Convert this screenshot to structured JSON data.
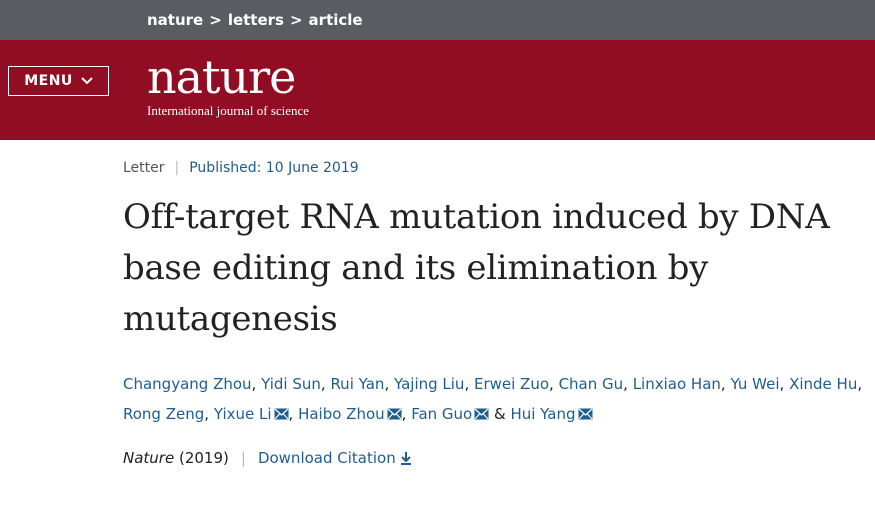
{
  "breadcrumb": {
    "items": [
      "nature",
      "letters",
      "article"
    ],
    "separator": ">"
  },
  "masthead": {
    "menu_label": "MENU",
    "logo_word": "nature",
    "logo_tagline": "International journal of science"
  },
  "article": {
    "type": "Letter",
    "published": "Published: 10 June 2019",
    "title": "Off-target RNA mutation induced by DNA base editing and its elimination by mutagenesis",
    "authors": [
      {
        "name": "Changyang Zhou",
        "sep": ", ",
        "mail": false
      },
      {
        "name": "Yidi Sun",
        "sep": ", ",
        "mail": false
      },
      {
        "name": "Rui Yan",
        "sep": ", ",
        "mail": false
      },
      {
        "name": "Yajing Liu",
        "sep": ", ",
        "mail": false
      },
      {
        "name": "Erwei Zuo",
        "sep": ", ",
        "mail": false
      },
      {
        "name": "Chan Gu",
        "sep": ", ",
        "mail": false
      },
      {
        "name": "Linxiao Han",
        "sep": ", ",
        "mail": false
      },
      {
        "name": "Yu Wei",
        "sep": ", ",
        "mail": false
      },
      {
        "name": "Xinde Hu",
        "sep": ", ",
        "mail": false
      },
      {
        "name": "Rong Zeng",
        "sep": ", ",
        "mail": false
      },
      {
        "name": "Yixue Li",
        "sep": ", ",
        "mail": true
      },
      {
        "name": "Haibo Zhou",
        "sep": ", ",
        "mail": true
      },
      {
        "name": "Fan Guo",
        "sep": " & ",
        "mail": true
      },
      {
        "name": "Hui Yang",
        "sep": "",
        "mail": true
      }
    ],
    "journal": "Nature",
    "year": "(2019)",
    "download_citation": "Download Citation"
  },
  "colors": {
    "brand": "#900d24",
    "topbar": "#595c61",
    "link": "#1f5d8f"
  },
  "icons": [
    "chevron-down-icon",
    "mail-icon",
    "download-icon"
  ]
}
